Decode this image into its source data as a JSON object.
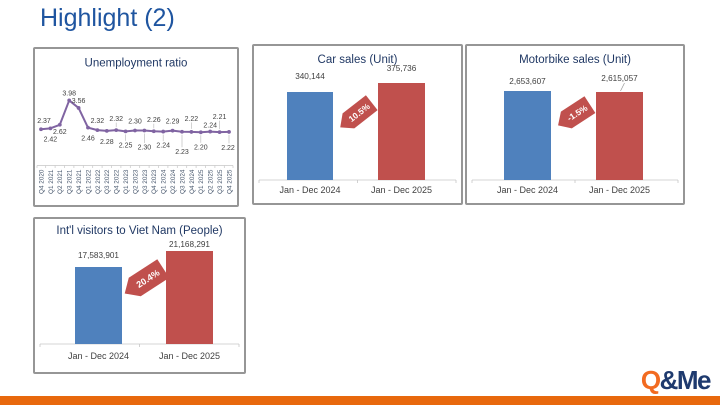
{
  "slide": {
    "title": "Highlight (2)"
  },
  "chart_data": [
    {
      "id": "unemployment-ratio",
      "type": "line",
      "title": "Unemployment ratio",
      "categories": [
        "Q4 2020",
        "Q1 2021",
        "Q2 2021",
        "Q3 2021",
        "Q4 2021",
        "Q1 2022",
        "Q2 2022",
        "Q3 2022",
        "Q4 2022",
        "Q1 2023",
        "Q2 2023",
        "Q3 2023",
        "Q4 2023",
        "Q1 2024",
        "Q2 2024",
        "Q3 2024",
        "Q4 2024",
        "Q1 2025",
        "Q2 2025",
        "Q3 2025",
        "Q4 2025"
      ],
      "values": [
        2.37,
        2.42,
        2.62,
        3.98,
        3.56,
        2.46,
        2.32,
        2.28,
        2.32,
        2.25,
        2.3,
        2.3,
        2.26,
        2.24,
        2.29,
        2.23,
        2.22,
        2.2,
        2.24,
        2.21,
        2.22
      ],
      "value_labels": [
        "2.37",
        "2.42",
        "2.62",
        "3.98",
        "3.56",
        "2.46",
        "2.32",
        "2.28",
        "2.32",
        "2.25",
        "2.30",
        "2.30",
        "2.26",
        "2.24",
        "2.29",
        "2.23",
        "2.22",
        "2.20",
        "2.24",
        "2.21",
        "2.22"
      ],
      "line_color": "#8064A2",
      "xlabel": "",
      "ylabel": "",
      "ylim": [
        2.0,
        4.2
      ],
      "grid": false,
      "legend": "none",
      "layout_hint": "data labels alternate above/below line; x labels rotated 90deg"
    },
    {
      "id": "car-sales",
      "type": "bar",
      "title": "Car sales (Unit)",
      "categories": [
        "Jan - Dec 2024",
        "Jan - Dec 2025"
      ],
      "values": [
        340144,
        375736
      ],
      "value_labels": [
        "340,144",
        "375,736"
      ],
      "change_label": "10.5%",
      "bar_colors": [
        "#4F81BD",
        "#C0504D"
      ],
      "xlabel": "",
      "ylabel": "",
      "grid": false,
      "legend": "none"
    },
    {
      "id": "motorbike-sales",
      "type": "bar",
      "title": "Motorbike sales (Unit)",
      "categories": [
        "Jan - Dec 2024",
        "Jan - Dec 2025"
      ],
      "values": [
        2653607,
        2615057
      ],
      "value_labels": [
        "2,653,607",
        "2,615,057"
      ],
      "change_label": "-1.5%",
      "bar_colors": [
        "#4F81BD",
        "#C0504D"
      ],
      "xlabel": "",
      "ylabel": "",
      "grid": false,
      "legend": "none"
    },
    {
      "id": "intl-visitors",
      "type": "bar",
      "title": "Int'l visitors to Viet Nam (People)",
      "categories": [
        "Jan - Dec 2024",
        "Jan - Dec 2025"
      ],
      "values": [
        17583901,
        21168291
      ],
      "value_labels": [
        "17,583,901",
        "21,168,291"
      ],
      "change_label": "20.4%",
      "bar_colors": [
        "#4F81BD",
        "#C0504D"
      ],
      "xlabel": "",
      "ylabel": "",
      "grid": false,
      "legend": "none"
    }
  ],
  "logo": {
    "q": "Q",
    "me": "&Me"
  },
  "colors": {
    "title_blue": "#1F55A0",
    "chart_title_navy": "#203864",
    "bar_blue": "#4F81BD",
    "bar_red": "#C0504D",
    "line_purple": "#8064A2",
    "tag_red": "#C0504D",
    "accent_orange": "#E8680D",
    "logo_orange": "#F26B21",
    "logo_navy": "#1E3A6E"
  }
}
